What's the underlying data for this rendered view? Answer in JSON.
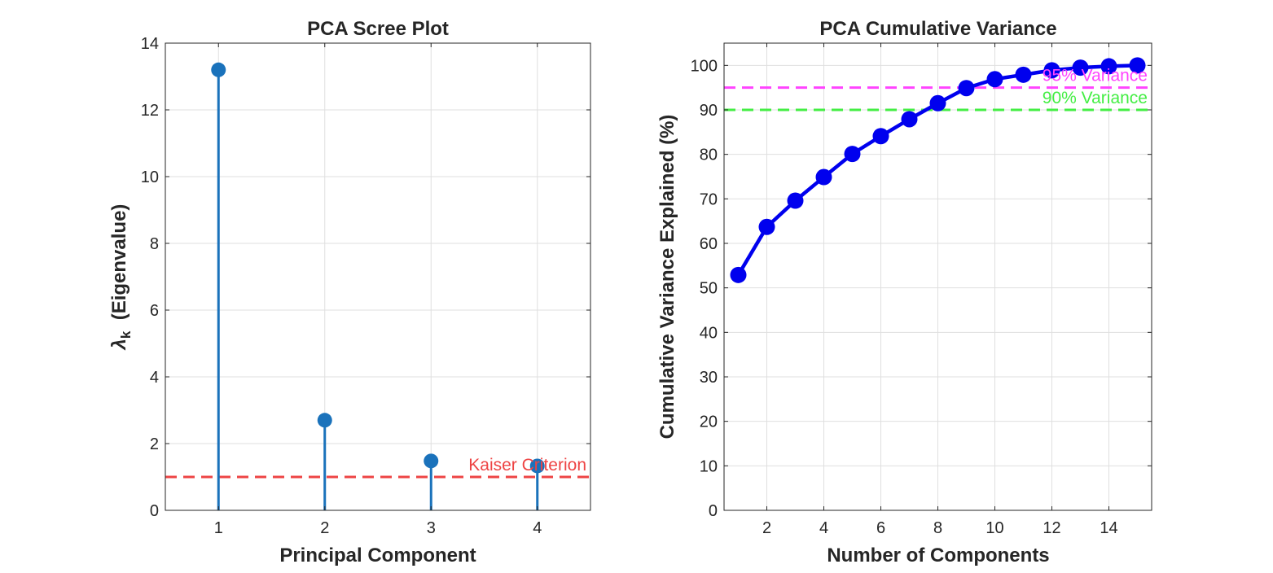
{
  "chart_data": [
    {
      "type": "stem",
      "title": "PCA Scree Plot",
      "xlabel": "Principal Component",
      "ylabel_main": "λ",
      "ylabel_sub": "k",
      "ylabel_rest": "  (Eigenvalue)",
      "xlim": [
        0.5,
        4.5
      ],
      "ylim": [
        0,
        14
      ],
      "xticks": [
        1,
        2,
        3,
        4
      ],
      "yticks": [
        0,
        2,
        4,
        6,
        8,
        10,
        12,
        14
      ],
      "grid": true,
      "x": [
        1,
        2,
        3,
        4
      ],
      "values": [
        13.2,
        2.7,
        1.48,
        1.33
      ],
      "color": "#1a72bb",
      "reference_lines": [
        {
          "y": 1,
          "label": "Kaiser Criterion",
          "color": "#ee4444",
          "style": "dashed"
        }
      ]
    },
    {
      "type": "line",
      "title": "PCA Cumulative Variance",
      "xlabel": "Number of Components",
      "ylabel": "Cumulative Variance Explained (%)",
      "xlim": [
        0.5,
        15.5
      ],
      "ylim": [
        0,
        105
      ],
      "xticks": [
        2,
        4,
        6,
        8,
        10,
        12,
        14
      ],
      "yticks": [
        0,
        10,
        20,
        30,
        40,
        50,
        60,
        70,
        80,
        90,
        100
      ],
      "grid": true,
      "x": [
        1,
        2,
        3,
        4,
        5,
        6,
        7,
        8,
        9,
        10,
        11,
        12,
        13,
        14,
        15
      ],
      "values": [
        52.9,
        63.7,
        69.6,
        74.9,
        80.1,
        84.1,
        87.9,
        91.5,
        94.9,
        96.9,
        97.9,
        98.9,
        99.5,
        99.8,
        100
      ],
      "color": "#0000ee",
      "reference_lines": [
        {
          "y": 95,
          "label": "95% Variance",
          "color": "#ff44ff",
          "style": "dashed"
        },
        {
          "y": 90,
          "label": "90% Variance",
          "color": "#44ee44",
          "style": "dashed"
        }
      ]
    }
  ]
}
